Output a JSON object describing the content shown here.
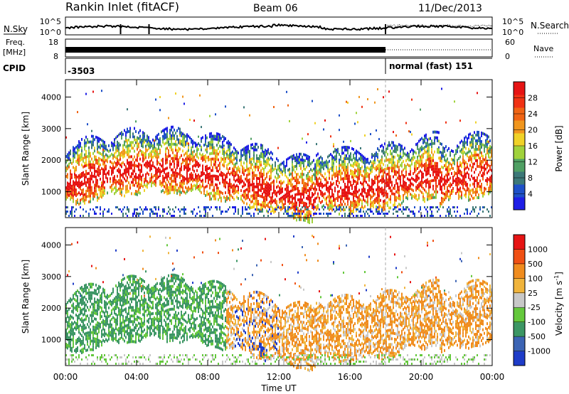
{
  "header": {
    "station": "Rankin Inlet (fitACF)",
    "beam": "Beam 06",
    "date": "11/Dec/2013"
  },
  "noise_panel": {
    "left_label": "N.Sky",
    "right_label": "N.Search",
    "left_ticks": [
      "10^5",
      "10^0"
    ],
    "right_ticks": [
      "10^5",
      "10^0"
    ]
  },
  "freq_panel": {
    "left_label": "Freq.",
    "left_unit": "[MHz]",
    "right_label": "Nave",
    "left_ticks": [
      "18",
      "8"
    ],
    "right_ticks": [
      "60",
      "0"
    ]
  },
  "cpid_panel": {
    "label": "CPID",
    "segments": [
      {
        "text": "-3503",
        "start_hour": 0,
        "end_hour": 18.0
      },
      {
        "text": "normal (fast) 151",
        "start_hour": 18.0,
        "end_hour": 24
      }
    ]
  },
  "chart_data": [
    {
      "type": "heatmap",
      "parameter": "Power",
      "ylabel": "Slant Range [km]",
      "xlabel": "Time UT",
      "xlim_hours": [
        0,
        24
      ],
      "ylim_km": [
        180,
        4550
      ],
      "x_ticks": [
        "00:00",
        "04:00",
        "08:00",
        "12:00",
        "16:00",
        "20:00",
        "00:00"
      ],
      "y_ticks": [
        1000,
        2000,
        3000,
        4000
      ],
      "colorbar": {
        "label": "Power [dB]",
        "ticks": [
          "4",
          "8",
          "12",
          "16",
          "20",
          "24",
          "28"
        ],
        "colors": [
          "#1e1ee6",
          "#1e50c8",
          "#3c7878",
          "#50a064",
          "#a0d23c",
          "#f0d228",
          "#f0961e",
          "#f06414",
          "#f03214",
          "#e61414"
        ]
      }
    },
    {
      "type": "heatmap",
      "parameter": "Velocity",
      "ylabel": "Slant Range [km]",
      "xlabel": "Time UT",
      "xlim_hours": [
        0,
        24
      ],
      "ylim_km": [
        180,
        4550
      ],
      "x_ticks": [
        "00:00",
        "04:00",
        "08:00",
        "12:00",
        "16:00",
        "20:00",
        "00:00"
      ],
      "y_ticks": [
        1000,
        2000,
        3000,
        4000
      ],
      "colorbar": {
        "label": "Velocity [m s",
        "label_sup": "-1",
        "ticks": [
          "1000",
          "500",
          "100",
          "25",
          "-25",
          "-100",
          "-500",
          "-1000"
        ],
        "colors": [
          "#1e3cc8",
          "#3c64b4",
          "#3c9664",
          "#64c83c",
          "#c8c8c8",
          "#f0b43c",
          "#f08c1e",
          "#f05014",
          "#e61414"
        ]
      }
    }
  ],
  "x_axis_title": "Time UT"
}
